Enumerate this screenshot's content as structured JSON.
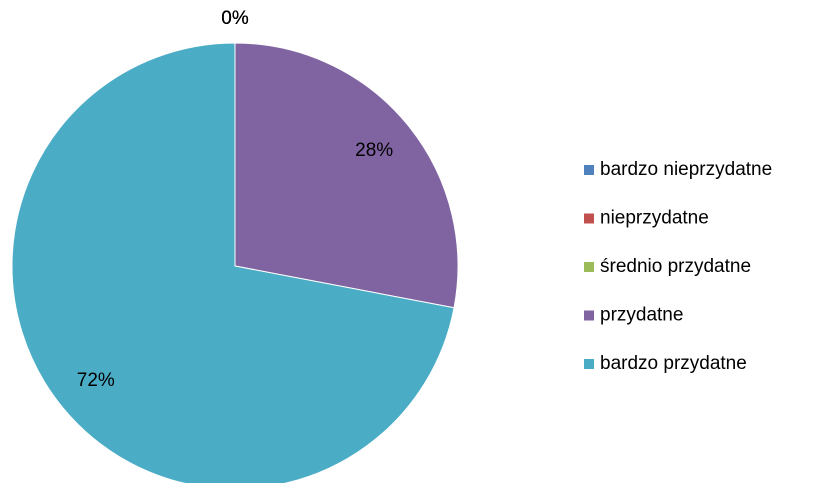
{
  "chart_data": {
    "type": "pie",
    "categories": [
      "bardzo nieprzydatne",
      "nieprzydatne",
      "średnio przydatne",
      "przydatne",
      "bardzo przydatne"
    ],
    "values": [
      0,
      0,
      0,
      28,
      72
    ],
    "value_labels": [
      "0%",
      "0%",
      "0%",
      "28%",
      "72%"
    ],
    "colors": [
      "#4f81bd",
      "#c0504d",
      "#9bbb59",
      "#8064a2",
      "#4bacc6"
    ],
    "legend": "right"
  }
}
